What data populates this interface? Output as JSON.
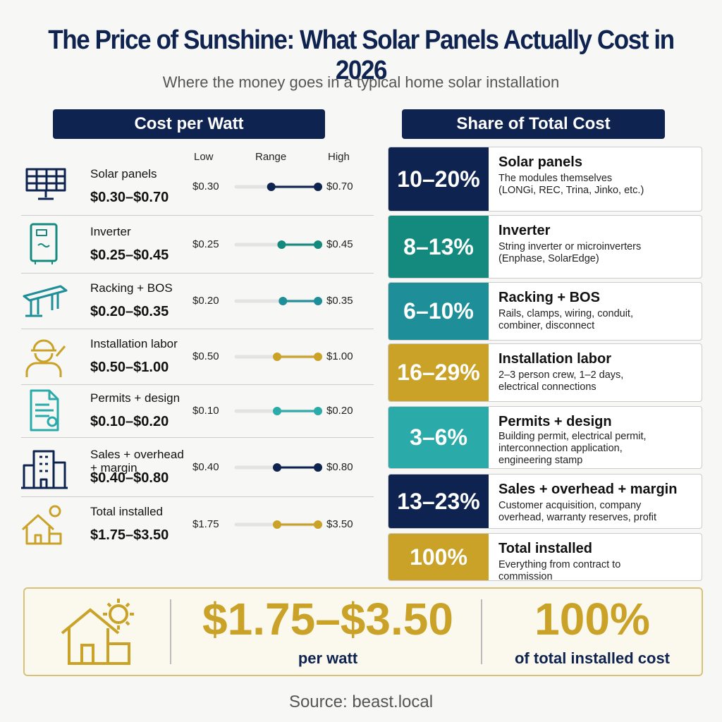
{
  "header": {
    "title": "The Price of Sunshine: What Solar Panels Actually Cost in 2026",
    "subtitle": "Where the money goes in a typical home solar installation"
  },
  "left": {
    "heading": "Cost per Watt",
    "columns": [
      "Low",
      "Range",
      "High"
    ],
    "rows": [
      {
        "name": "Solar panels",
        "range": "$0.30–$0.70",
        "low": {
          "value": 0.3,
          "label": "$0.30"
        },
        "high": {
          "value": 0.7,
          "label": "$0.70"
        },
        "color": "#0e2350"
      },
      {
        "name": "Inverter",
        "range": "$0.25–$0.45",
        "low": {
          "value": 0.25,
          "label": "$0.25"
        },
        "high": {
          "value": 0.45,
          "label": "$0.45"
        },
        "color": "#148a7e"
      },
      {
        "name": "Racking + BOS",
        "range": "$0.20–$0.35",
        "low": {
          "value": 0.2,
          "label": "$0.20"
        },
        "high": {
          "value": 0.35,
          "label": "$0.35"
        },
        "color": "#1e8e98"
      },
      {
        "name": "Installation labor",
        "range": "$0.50–$1.00",
        "low": {
          "value": 0.5,
          "label": "$0.50"
        },
        "high": {
          "value": 1.0,
          "label": "$1.00"
        },
        "color": "#c9a227"
      },
      {
        "name": "Permits + design",
        "range": "$0.10–$0.20",
        "low": {
          "value": 0.1,
          "label": "$0.10"
        },
        "high": {
          "value": 0.2,
          "label": "$0.20"
        },
        "color": "#2aaaa9"
      },
      {
        "name": "Sales + overhead + margin",
        "range": "$0.40–$0.80",
        "low": {
          "value": 0.4,
          "label": "$0.40"
        },
        "high": {
          "value": 0.8,
          "label": "$0.80"
        },
        "color": "#0e2350"
      },
      {
        "name": "Total installed",
        "range": "$1.75–$3.50",
        "low": {
          "value": 1.75,
          "label": "$1.75"
        },
        "high": {
          "value": 3.5,
          "label": "$3.50"
        },
        "color": "#c9a227"
      }
    ]
  },
  "right": {
    "heading": "Share of Total Cost",
    "cards": [
      {
        "share": "10–20%",
        "name": "Solar panels",
        "lines": [
          "The modules themselves",
          "(LONGi, REC, Trina, Jinko, etc.)"
        ],
        "color": "#0e2350"
      },
      {
        "share": "8–13%",
        "name": "Inverter",
        "lines": [
          "String inverter or microinverters",
          "(Enphase, SolarEdge)"
        ],
        "color": "#148a7e"
      },
      {
        "share": "6–10%",
        "name": "Racking + BOS",
        "lines": [
          "Rails, clamps, wiring, conduit,",
          "combiner, disconnect"
        ],
        "color": "#1e8e98"
      },
      {
        "share": "16–29%",
        "name": "Installation labor",
        "lines": [
          "2–3 person crew, 1–2 days,",
          "electrical connections"
        ],
        "color": "#c9a227"
      },
      {
        "share": "3–6%",
        "name": "Permits + design",
        "lines": [
          "Building permit, electrical permit,",
          "interconnection application,",
          "engineering stamp"
        ],
        "color": "#2aaaa9"
      },
      {
        "share": "13–23%",
        "name": "Sales + overhead + margin",
        "lines": [
          "Customer acquisition, company",
          "overhead, warranty reserves, profit"
        ],
        "color": "#0e2350"
      },
      {
        "share": "100%",
        "name": "Total installed",
        "lines": [
          "Everything from contract to",
          "commission"
        ],
        "color": "#c9a227"
      }
    ]
  },
  "footer": {
    "price": "$1.75–$3.50",
    "price_unit": "per watt",
    "share": "100%",
    "share_label": "of total installed cost"
  },
  "source": "Source: beast.local"
}
